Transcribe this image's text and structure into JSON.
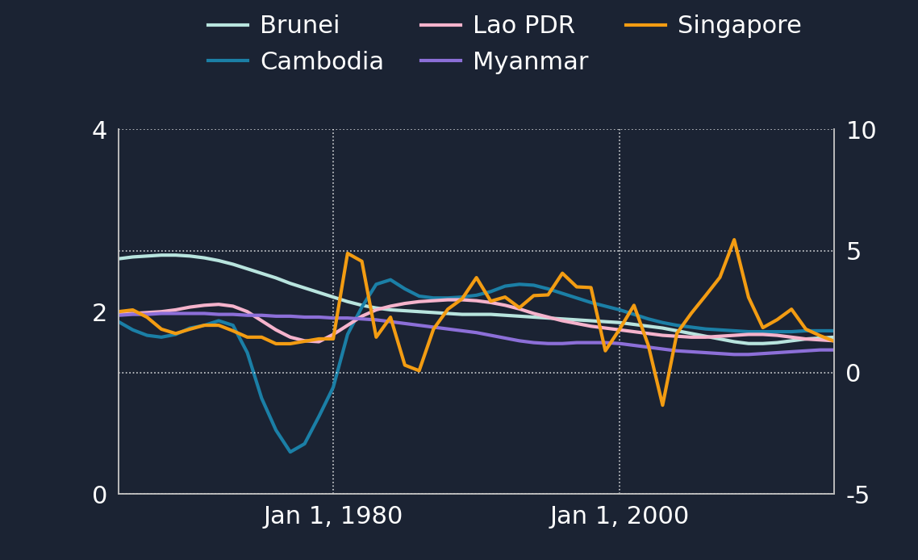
{
  "chart_data": {
    "type": "line",
    "x": [
      1965,
      1966,
      1967,
      1968,
      1969,
      1970,
      1971,
      1972,
      1973,
      1974,
      1975,
      1976,
      1977,
      1978,
      1979,
      1980,
      1981,
      1982,
      1983,
      1984,
      1985,
      1986,
      1987,
      1988,
      1989,
      1990,
      1991,
      1992,
      1993,
      1994,
      1995,
      1996,
      1997,
      1998,
      1999,
      2000,
      2001,
      2002,
      2003,
      2004,
      2005,
      2006,
      2007,
      2008,
      2009,
      2010,
      2011,
      2012,
      2013,
      2014,
      2015
    ],
    "xlim": [
      1965,
      2015
    ],
    "xticks": [
      {
        "value": 1980,
        "label": "Jan 1, 1980"
      },
      {
        "value": 2000,
        "label": "Jan 1, 2000"
      }
    ],
    "ylim": [
      0,
      4
    ],
    "yticks": [
      0,
      2,
      4
    ],
    "y2lim": [
      -5,
      10
    ],
    "y2ticks": [
      -5,
      0,
      5,
      10
    ],
    "grid": true,
    "legend": "upper center",
    "series": [
      {
        "name": "Brunei",
        "color": "#b8e4de",
        "line_style": "solid",
        "values": [
          2.58,
          2.6,
          2.61,
          2.62,
          2.62,
          2.61,
          2.59,
          2.56,
          2.52,
          2.47,
          2.42,
          2.37,
          2.31,
          2.26,
          2.21,
          2.16,
          2.11,
          2.07,
          2.04,
          2.02,
          2.01,
          2.0,
          1.99,
          1.98,
          1.97,
          1.97,
          1.97,
          1.96,
          1.95,
          1.94,
          1.93,
          1.92,
          1.91,
          1.9,
          1.89,
          1.88,
          1.86,
          1.84,
          1.82,
          1.79,
          1.76,
          1.73,
          1.7,
          1.67,
          1.65,
          1.65,
          1.66,
          1.68,
          1.7,
          1.71,
          1.72
        ]
      },
      {
        "name": "Cambodia",
        "color": "#1b7fa6",
        "line_style": "solid",
        "values": [
          1.89,
          1.8,
          1.74,
          1.72,
          1.75,
          1.82,
          1.85,
          1.9,
          1.85,
          1.55,
          1.05,
          0.7,
          0.46,
          0.55,
          0.85,
          1.17,
          1.75,
          2.05,
          2.3,
          2.35,
          2.25,
          2.17,
          2.15,
          2.15,
          2.16,
          2.18,
          2.22,
          2.28,
          2.3,
          2.29,
          2.25,
          2.2,
          2.15,
          2.1,
          2.06,
          2.02,
          1.97,
          1.92,
          1.88,
          1.85,
          1.83,
          1.81,
          1.8,
          1.79,
          1.78,
          1.78,
          1.78,
          1.78,
          1.79,
          1.79,
          1.79
        ]
      },
      {
        "name": "Lao PDR",
        "color": "#f5b3cc",
        "line_style": "solid",
        "values": [
          1.98,
          1.98,
          1.99,
          2.0,
          2.02,
          2.05,
          2.07,
          2.08,
          2.06,
          2.0,
          1.9,
          1.8,
          1.72,
          1.68,
          1.67,
          1.75,
          1.85,
          1.95,
          2.02,
          2.06,
          2.09,
          2.11,
          2.12,
          2.13,
          2.13,
          2.12,
          2.1,
          2.07,
          2.03,
          1.98,
          1.94,
          1.9,
          1.87,
          1.84,
          1.82,
          1.8,
          1.78,
          1.76,
          1.74,
          1.73,
          1.72,
          1.72,
          1.73,
          1.74,
          1.75,
          1.75,
          1.74,
          1.72,
          1.7,
          1.69,
          1.68
        ]
      },
      {
        "name": "Myanmar",
        "color": "#8c6fd8",
        "line_style": "solid",
        "values": [
          1.96,
          1.97,
          1.97,
          1.98,
          1.98,
          1.98,
          1.98,
          1.97,
          1.97,
          1.96,
          1.96,
          1.95,
          1.95,
          1.94,
          1.94,
          1.93,
          1.93,
          1.92,
          1.91,
          1.89,
          1.87,
          1.85,
          1.83,
          1.81,
          1.79,
          1.77,
          1.74,
          1.71,
          1.68,
          1.66,
          1.65,
          1.65,
          1.66,
          1.66,
          1.66,
          1.65,
          1.63,
          1.61,
          1.59,
          1.57,
          1.56,
          1.55,
          1.54,
          1.53,
          1.53,
          1.54,
          1.55,
          1.56,
          1.57,
          1.58,
          1.58
        ]
      },
      {
        "name": "Singapore",
        "color": "#f39c12",
        "line_style": "solid",
        "axis": "y2",
        "values": [
          2.5,
          2.57,
          2.27,
          1.78,
          1.6,
          1.78,
          1.94,
          1.94,
          1.71,
          1.45,
          1.45,
          1.18,
          1.18,
          1.28,
          1.38,
          1.38,
          4.9,
          4.57,
          1.45,
          2.27,
          0.3,
          0.07,
          1.78,
          2.6,
          3.03,
          3.9,
          2.93,
          3.1,
          2.66,
          3.16,
          3.19,
          4.08,
          3.52,
          3.49,
          0.89,
          1.78,
          2.76,
          1.12,
          -1.35,
          1.61,
          2.43,
          3.16,
          3.91,
          5.46,
          3.09,
          1.84,
          2.17,
          2.6,
          1.78,
          1.51,
          1.28
        ]
      }
    ]
  }
}
